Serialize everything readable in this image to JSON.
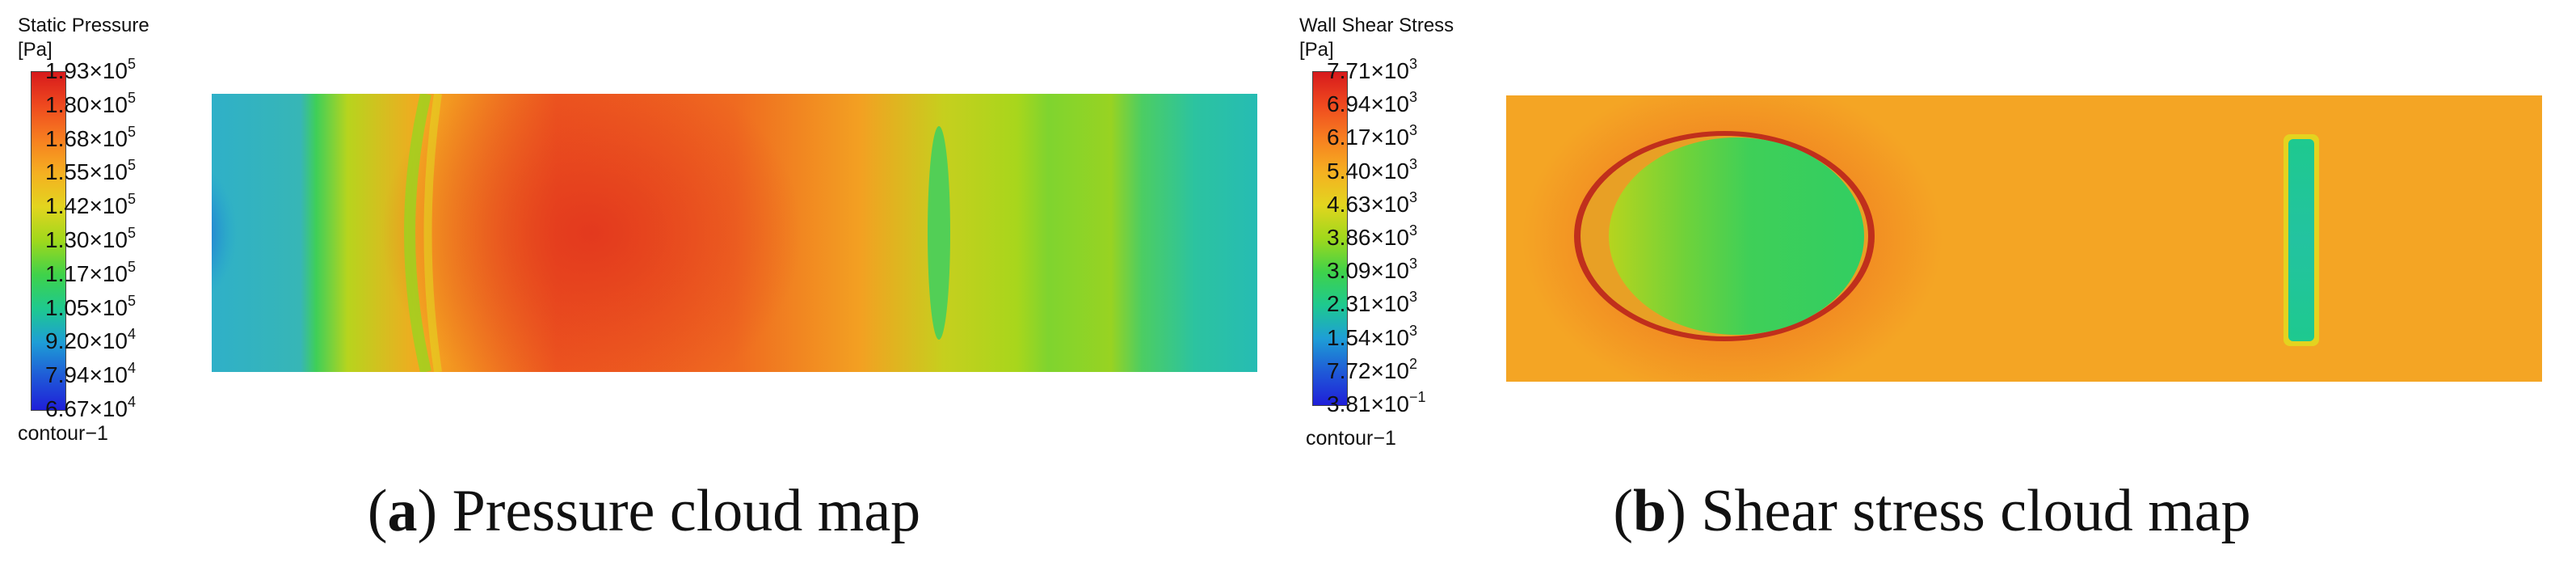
{
  "panels": [
    {
      "legend_title": "Static Pressure",
      "legend_unit": "[Pa]",
      "ticks": [
        {
          "m": "1.93×10",
          "e": "5"
        },
        {
          "m": "1.80×10",
          "e": "5"
        },
        {
          "m": "1.68×10",
          "e": "5"
        },
        {
          "m": "1.55×10",
          "e": "5"
        },
        {
          "m": "1.42×10",
          "e": "5"
        },
        {
          "m": "1.30×10",
          "e": "5"
        },
        {
          "m": "1.17×10",
          "e": "5"
        },
        {
          "m": "1.05×10",
          "e": "5"
        },
        {
          "m": "9.20×10",
          "e": "4"
        },
        {
          "m": "7.94×10",
          "e": "4"
        },
        {
          "m": "6.67×10",
          "e": "4"
        }
      ],
      "contour_label": "contour−1",
      "caption_letter": "a",
      "caption_text": "Pressure cloud map"
    },
    {
      "legend_title": "Wall Shear Stress",
      "legend_unit": "[Pa]",
      "ticks": [
        {
          "m": "7.71×10",
          "e": "3"
        },
        {
          "m": "6.94×10",
          "e": "3"
        },
        {
          "m": "6.17×10",
          "e": "3"
        },
        {
          "m": "5.40×10",
          "e": "3"
        },
        {
          "m": "4.63×10",
          "e": "3"
        },
        {
          "m": "3.86×10",
          "e": "3"
        },
        {
          "m": "3.09×10",
          "e": "3"
        },
        {
          "m": "2.31×10",
          "e": "3"
        },
        {
          "m": "1.54×10",
          "e": "3"
        },
        {
          "m": "7.72×10",
          "e": "2"
        },
        {
          "m": "3.81×10",
          "e": "−1"
        }
      ],
      "contour_label": "contour−1",
      "caption_letter": "b",
      "caption_text": "Shear stress cloud map"
    }
  ],
  "colormap": [
    "#d7191c",
    "#ef4a1f",
    "#f77f20",
    "#f5b021",
    "#e2d51f",
    "#9fd81c",
    "#3fd24a",
    "#1ec98f",
    "#1e9ed6",
    "#1f5ad7",
    "#1f1fd9"
  ]
}
